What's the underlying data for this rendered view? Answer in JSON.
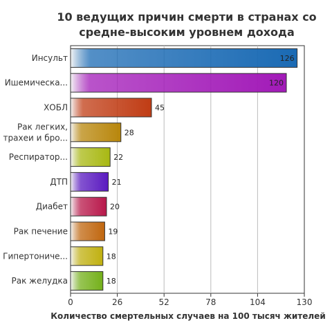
{
  "chart_data": {
    "type": "bar",
    "orientation": "horizontal",
    "title_lines": [
      "10 ведущих причин смерти в странах со",
      "средне-высоким уровнем дохода"
    ],
    "xlabel": "Количество смертельных случаев на 100 тысяч жителей",
    "ylabel": "",
    "xlim": [
      0,
      130
    ],
    "xticks": [
      0,
      26,
      52,
      78,
      104,
      130
    ],
    "grid": true,
    "categories": [
      [
        "Инсульт"
      ],
      [
        "Ишемическа..."
      ],
      [
        "ХОБЛ"
      ],
      [
        "Рак легких,",
        "трахеи и бро..."
      ],
      [
        "Респиратор..."
      ],
      [
        "ДТП"
      ],
      [
        "Диабет"
      ],
      [
        "Рак печение"
      ],
      [
        "Гипертониче..."
      ],
      [
        "Рак желудка"
      ]
    ],
    "values": [
      126,
      120,
      45,
      28,
      22,
      21,
      20,
      19,
      18,
      18
    ],
    "colors": [
      "#1a6ab4",
      "#a21ab8",
      "#c03c14",
      "#b8860b",
      "#a8b812",
      "#5a1ac0",
      "#b8184a",
      "#c0660e",
      "#c0b010",
      "#74b01a"
    ]
  }
}
